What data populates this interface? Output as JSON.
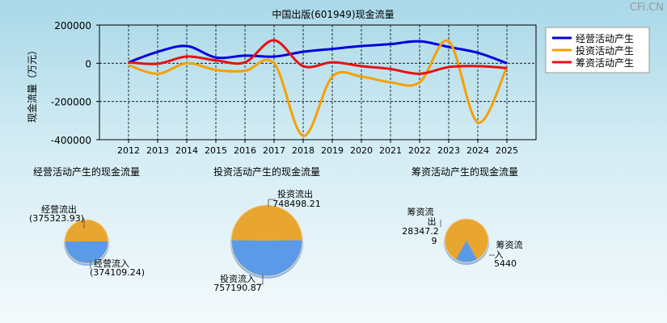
{
  "brand": "CFi.CN",
  "chart_data": [
    {
      "type": "line",
      "title": "中国出版(601949)现金流量",
      "ylabel": "现金流量（万元）",
      "ylim": [
        -400000,
        200000
      ],
      "yticks": [
        200000,
        0,
        -200000,
        -400000
      ],
      "grid": true,
      "legend_position": "top-right",
      "x": [
        "2012",
        "2013",
        "2014",
        "2015",
        "2016",
        "2017",
        "2018",
        "2019",
        "2020",
        "2021",
        "2022",
        "2023",
        "2024",
        "2025"
      ],
      "series": [
        {
          "name": "经营活动产生",
          "color": "#0000dd",
          "values": [
            5000,
            60000,
            90000,
            30000,
            40000,
            35000,
            60000,
            75000,
            90000,
            100000,
            115000,
            85000,
            55000,
            0
          ]
        },
        {
          "name": "投资活动产生",
          "color": "#f5a000",
          "values": [
            -10000,
            -55000,
            0,
            -35000,
            -40000,
            0,
            -380000,
            -70000,
            -70000,
            -100000,
            -100000,
            115000,
            -310000,
            -20000
          ]
        },
        {
          "name": "筹资活动产生",
          "color": "#e81010",
          "values": [
            5000,
            -3000,
            35000,
            15000,
            5000,
            120000,
            -15000,
            5000,
            -15000,
            -30000,
            -55000,
            -20000,
            -15000,
            -25000
          ]
        }
      ]
    },
    {
      "type": "pie",
      "title": "经营活动产生的现金流量",
      "slices": [
        {
          "label": "经营流出",
          "value": "(375323.93)",
          "color": "#e8a530"
        },
        {
          "label": "经营流入",
          "value": "(374109.24)",
          "color": "#5a9ae8"
        }
      ]
    },
    {
      "type": "pie",
      "title": "投资活动产生的现金流量",
      "slices": [
        {
          "label": "投资流出",
          "value": "748498.21",
          "color": "#e8a530"
        },
        {
          "label": "投资流入",
          "value": "757190.87",
          "color": "#5a9ae8"
        }
      ]
    },
    {
      "type": "pie",
      "title": "筹资活动产生的现金流量",
      "slices": [
        {
          "label": "筹资流出",
          "value": "28347.29",
          "color": "#e8a530"
        },
        {
          "label": "筹资流入",
          "value": "5440",
          "color": "#5a9ae8"
        }
      ]
    }
  ]
}
